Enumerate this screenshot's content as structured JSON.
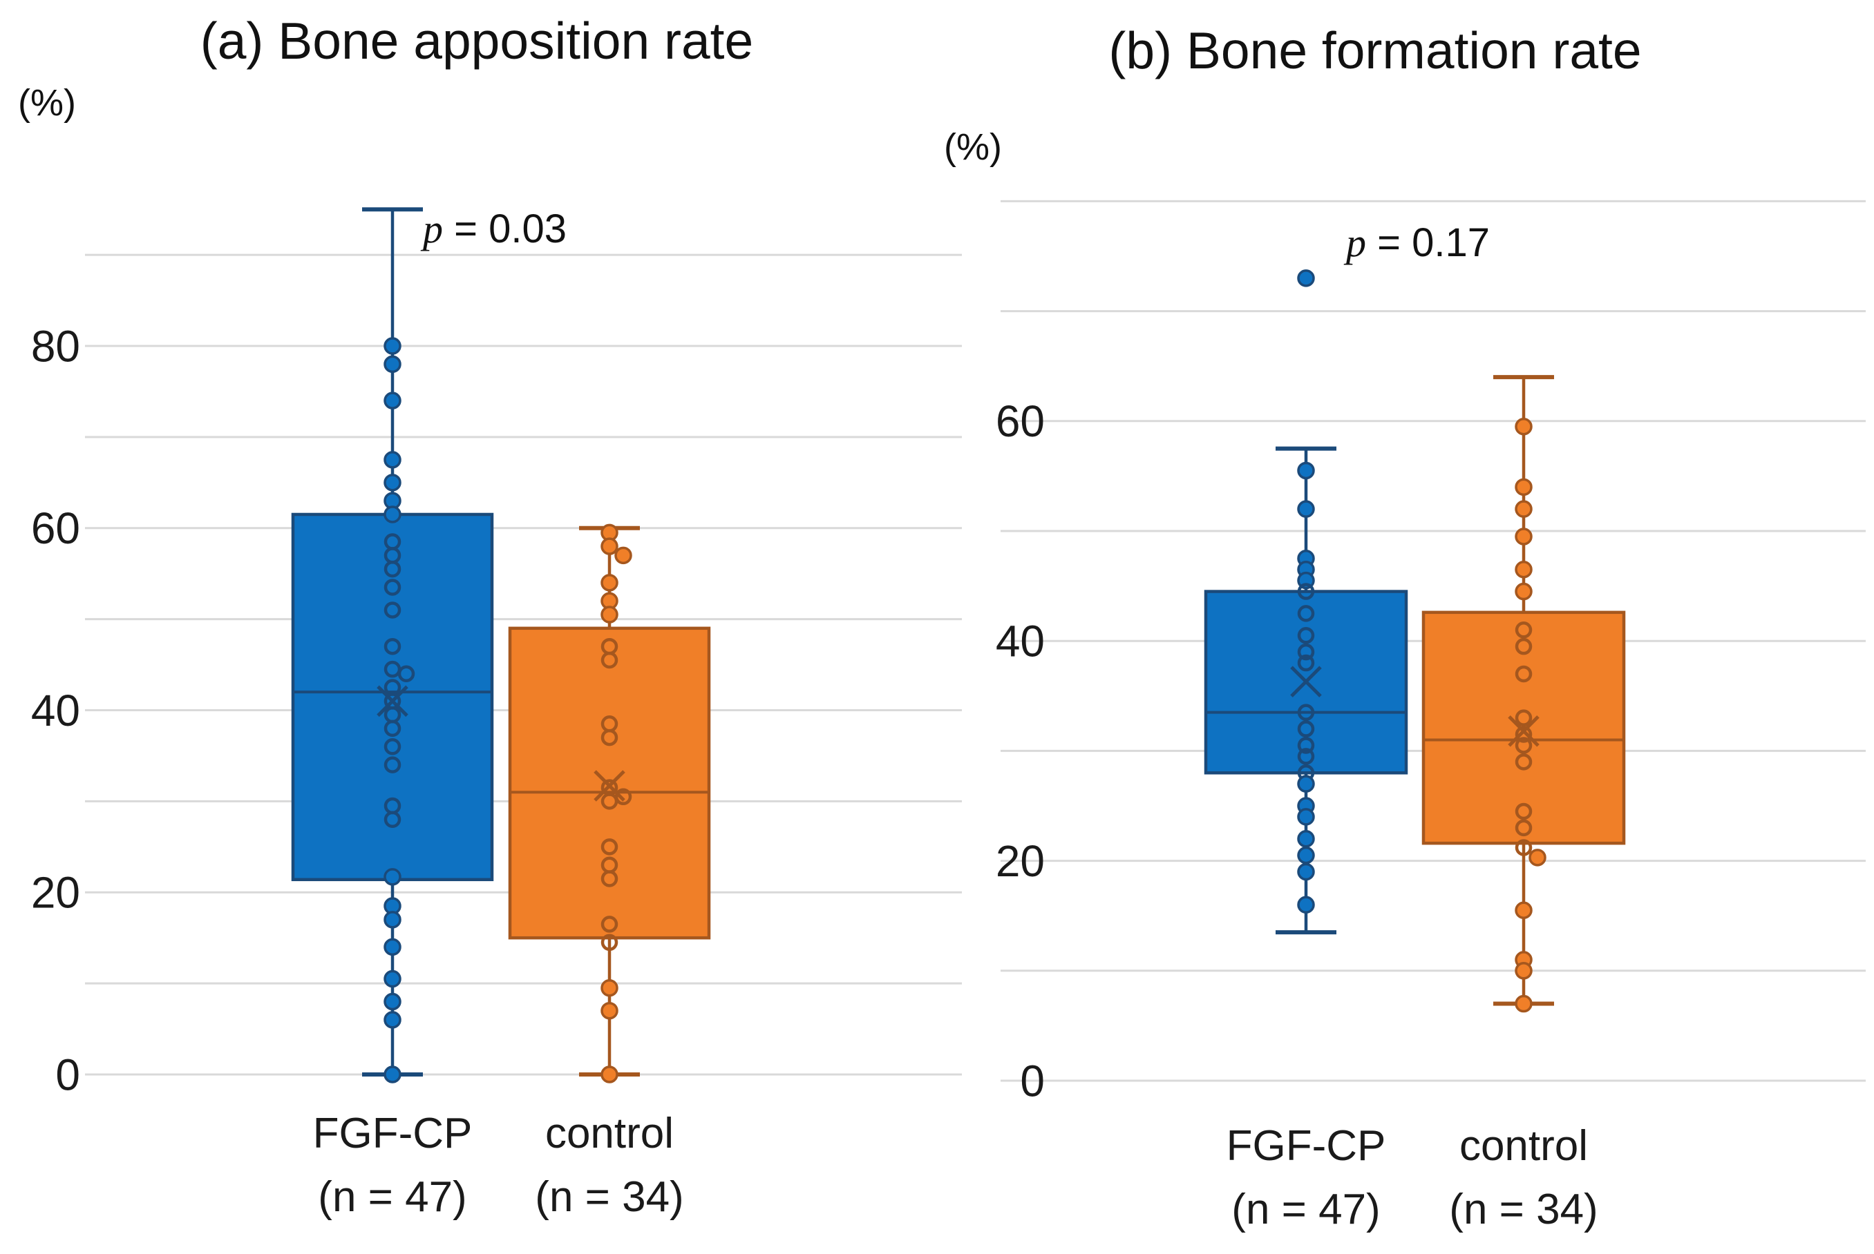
{
  "chart_data": [
    {
      "type": "box",
      "panel": "a",
      "title": "(a) Bone apposition rate",
      "unit_label": "(%)",
      "p_prefix": "p",
      "p_rest": " = 0.03",
      "ylabel": "(%)",
      "axis": {
        "min": 0,
        "max": 100,
        "tick_labels": [
          0,
          20,
          40,
          60,
          80
        ],
        "grid_min": 0,
        "grid_max": 90,
        "grid_step": 10,
        "grid_on": true,
        "grid_color": "#d9d9d9"
      },
      "groups": [
        {
          "label": "FGF-CP",
          "sublabel": "(n = 47)",
          "color": "#0e72c2",
          "edge": "#1b4a7a",
          "stats": {
            "whisker_low": 0,
            "q1": 21.4,
            "median": 42,
            "q3": 61.5,
            "whisker_high": 95,
            "mean": 41
          },
          "points": [
            [
              80,
              "f"
            ],
            [
              78,
              "f"
            ],
            [
              74,
              "f"
            ],
            [
              67.5,
              "f"
            ],
            [
              65,
              "f"
            ],
            [
              63,
              "f"
            ],
            [
              61.5,
              "f"
            ],
            [
              58.5,
              "o"
            ],
            [
              57,
              "o"
            ],
            [
              55.5,
              "o"
            ],
            [
              53.5,
              "o"
            ],
            [
              51,
              "o"
            ],
            [
              47,
              "o"
            ],
            [
              44.5,
              "o"
            ],
            [
              44,
              "o"
            ],
            [
              42.5,
              "o"
            ],
            [
              41,
              "o"
            ],
            [
              39.5,
              "o"
            ],
            [
              38,
              "o"
            ],
            [
              36,
              "o"
            ],
            [
              34,
              "o"
            ],
            [
              29.5,
              "o"
            ],
            [
              28,
              "o"
            ],
            [
              21.7,
              "f"
            ],
            [
              18.5,
              "f"
            ],
            [
              17,
              "f"
            ],
            [
              14,
              "f"
            ],
            [
              10.5,
              "f"
            ],
            [
              8,
              "f"
            ],
            [
              6,
              "f"
            ],
            [
              0,
              "f"
            ]
          ]
        },
        {
          "label": "control",
          "sublabel": "(n = 34)",
          "color": "#f07f28",
          "edge": "#a5571e",
          "stats": {
            "whisker_low": 0,
            "q1": 15,
            "median": 31,
            "q3": 49,
            "whisker_high": 60,
            "mean": 31.7
          },
          "points": [
            [
              59.5,
              "f"
            ],
            [
              58,
              "f"
            ],
            [
              57,
              "f"
            ],
            [
              54,
              "f"
            ],
            [
              52,
              "f"
            ],
            [
              50.5,
              "f"
            ],
            [
              47,
              "o"
            ],
            [
              45.5,
              "o"
            ],
            [
              38.5,
              "o"
            ],
            [
              37,
              "o"
            ],
            [
              31.5,
              "o"
            ],
            [
              30.5,
              "o"
            ],
            [
              30,
              "o"
            ],
            [
              25,
              "o"
            ],
            [
              23,
              "o"
            ],
            [
              21.5,
              "o"
            ],
            [
              16.5,
              "o"
            ],
            [
              14.5,
              "o"
            ],
            [
              9.5,
              "f"
            ],
            [
              7,
              "f"
            ],
            [
              0,
              "f"
            ]
          ]
        }
      ]
    },
    {
      "type": "box",
      "panel": "b",
      "title": "(b) Bone formation rate",
      "unit_label": "(%)",
      "p_prefix": "p",
      "p_rest": " = 0.17",
      "ylabel": "(%)",
      "axis": {
        "min": 0,
        "max": 80,
        "tick_labels": [
          0,
          20,
          40,
          60
        ],
        "grid_min": 0,
        "grid_max": 80,
        "grid_step": 10,
        "grid_on": true,
        "grid_color": "#d9d9d9"
      },
      "groups": [
        {
          "label": "FGF-CP",
          "sublabel": "(n = 47)",
          "color": "#0e72c2",
          "edge": "#1b4a7a",
          "stats": {
            "whisker_low": 13.5,
            "q1": 28,
            "median": 33.5,
            "q3": 44.5,
            "whisker_high": 57.5,
            "mean": 36.3
          },
          "points": [
            [
              73,
              "f"
            ],
            [
              55.5,
              "f"
            ],
            [
              52,
              "f"
            ],
            [
              47.5,
              "f"
            ],
            [
              46.5,
              "f"
            ],
            [
              45.5,
              "f"
            ],
            [
              44.5,
              "o"
            ],
            [
              42.5,
              "o"
            ],
            [
              40.5,
              "o"
            ],
            [
              39,
              "o"
            ],
            [
              38,
              "o"
            ],
            [
              33.5,
              "o"
            ],
            [
              32,
              "o"
            ],
            [
              30.5,
              "o"
            ],
            [
              29.5,
              "o"
            ],
            [
              28,
              "o"
            ],
            [
              27,
              "f"
            ],
            [
              25,
              "f"
            ],
            [
              24,
              "f"
            ],
            [
              22,
              "f"
            ],
            [
              20.5,
              "f"
            ],
            [
              19,
              "f"
            ],
            [
              16,
              "f"
            ]
          ]
        },
        {
          "label": "control",
          "sublabel": "(n = 34)",
          "color": "#f07f28",
          "edge": "#a5571e",
          "stats": {
            "whisker_low": 7,
            "q1": 21.6,
            "median": 31,
            "q3": 42.6,
            "whisker_high": 64,
            "mean": 31.8
          },
          "points": [
            [
              59.5,
              "f"
            ],
            [
              54,
              "f"
            ],
            [
              52,
              "f"
            ],
            [
              49.5,
              "f"
            ],
            [
              46.5,
              "f"
            ],
            [
              44.5,
              "f"
            ],
            [
              41,
              "o"
            ],
            [
              39.5,
              "o"
            ],
            [
              37,
              "o"
            ],
            [
              33,
              "o"
            ],
            [
              31.5,
              "o"
            ],
            [
              30.5,
              "o"
            ],
            [
              29,
              "o"
            ],
            [
              24.5,
              "o"
            ],
            [
              23,
              "o"
            ],
            [
              21.2,
              "o"
            ],
            [
              20.3,
              "f"
            ],
            [
              15.5,
              "f"
            ],
            [
              11,
              "f"
            ],
            [
              10,
              "f"
            ],
            [
              7,
              "f"
            ]
          ]
        }
      ]
    }
  ],
  "background_color": "#ffffff"
}
